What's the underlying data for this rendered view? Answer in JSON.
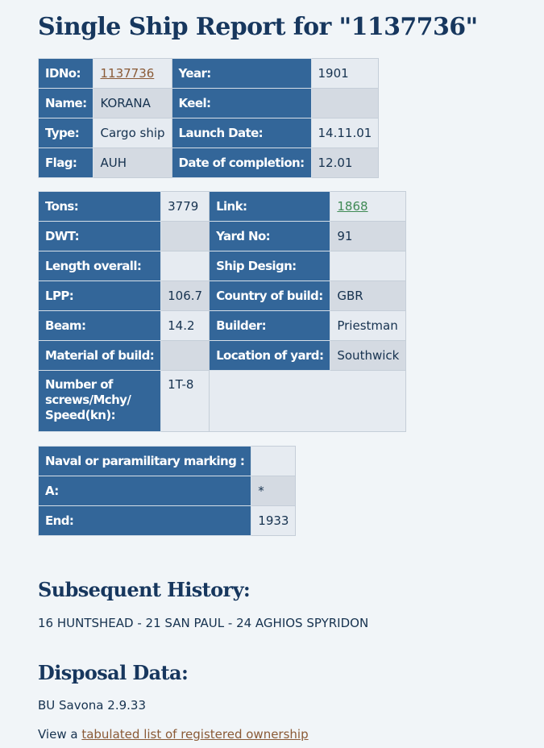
{
  "title": "Single Ship Report for \"1137736\"",
  "basic": {
    "idno_label": "IDNo:",
    "idno_value": "1137736",
    "year_label": "Year:",
    "year_value": "1901",
    "name_label": "Name:",
    "name_value": "KORANA",
    "keel_label": "Keel:",
    "keel_value": "",
    "type_label": "Type:",
    "type_value": "Cargo ship",
    "launch_label": "Launch Date:",
    "launch_value": "14.11.01",
    "flag_label": "Flag:",
    "flag_value": "AUH",
    "completion_label": "Date of completion:",
    "completion_value": "12.01"
  },
  "specs": {
    "tons_label": "Tons:",
    "tons_value": "3779",
    "link_label": "Link:",
    "link_value": "1868",
    "dwt_label": "DWT:",
    "dwt_value": "",
    "yard_label": "Yard No:",
    "yard_value": "91",
    "length_label": "Length overall:",
    "length_value": "",
    "design_label": "Ship Design:",
    "design_value": "",
    "lpp_label": "LPP:",
    "lpp_value": "106.7",
    "country_label": "Country of build:",
    "country_value": "GBR",
    "beam_label": "Beam:",
    "beam_value": "14.2",
    "builder_label": "Builder:",
    "builder_value": "Priestman",
    "material_label": "Material of build:",
    "material_value": "",
    "location_label": "Location of yard:",
    "location_value": "Southwick",
    "screws_label_1": "Number of",
    "screws_label_2": "screws/Mchy/",
    "screws_label_3": "Speed(kn):",
    "screws_value": "1T-8"
  },
  "naval": {
    "marking_label": "Naval or paramilitary marking :",
    "marking_value": "",
    "a_label": "A:",
    "a_value": "*",
    "end_label": "End:",
    "end_value": "1933"
  },
  "history": {
    "heading": "Subsequent History:",
    "text": "16 HUNTSHEAD - 21 SAN PAUL - 24 AGHIOS SPYRIDON"
  },
  "disposal": {
    "heading": "Disposal Data:",
    "text": "BU Savona 2.9.33",
    "view_prefix": "View a ",
    "view_link": "tabulated list of registered ownership"
  },
  "colors": {
    "header_cell": "#336699",
    "value_light": "#e6ebf1",
    "value_dark": "#d4dae2",
    "heading_text": "#17375e",
    "link_brown": "#8a5a36",
    "link_green": "#3f8a55"
  }
}
